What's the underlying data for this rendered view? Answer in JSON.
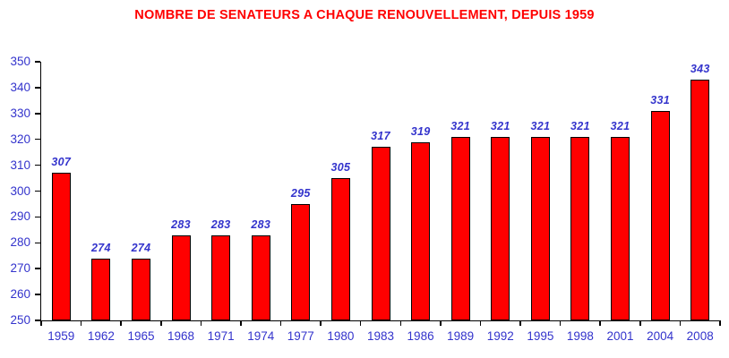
{
  "chart_data": {
    "type": "bar",
    "title": "NOMBRE DE SENATEURS A CHAQUE RENOUVELLEMENT, DEPUIS 1959",
    "categories": [
      "1959",
      "1962",
      "1965",
      "1968",
      "1971",
      "1974",
      "1977",
      "1980",
      "1983",
      "1986",
      "1989",
      "1992",
      "1995",
      "1998",
      "2001",
      "2004",
      "2008"
    ],
    "values": [
      307,
      274,
      274,
      283,
      283,
      283,
      295,
      305,
      317,
      319,
      321,
      321,
      321,
      321,
      321,
      331,
      343
    ],
    "xlabel": "",
    "ylabel": "",
    "ylim": [
      250,
      350
    ],
    "ytick_step": 10,
    "grid": false,
    "legend": false,
    "data_labels": true,
    "colors": {
      "bar_fill": "#FF0000",
      "bar_border": "#000000",
      "title": "#FF0000",
      "axis_line": "#000000",
      "tick_label": "#3333CC",
      "value_label": "#3333CC"
    },
    "background": "#FFFFFF"
  }
}
